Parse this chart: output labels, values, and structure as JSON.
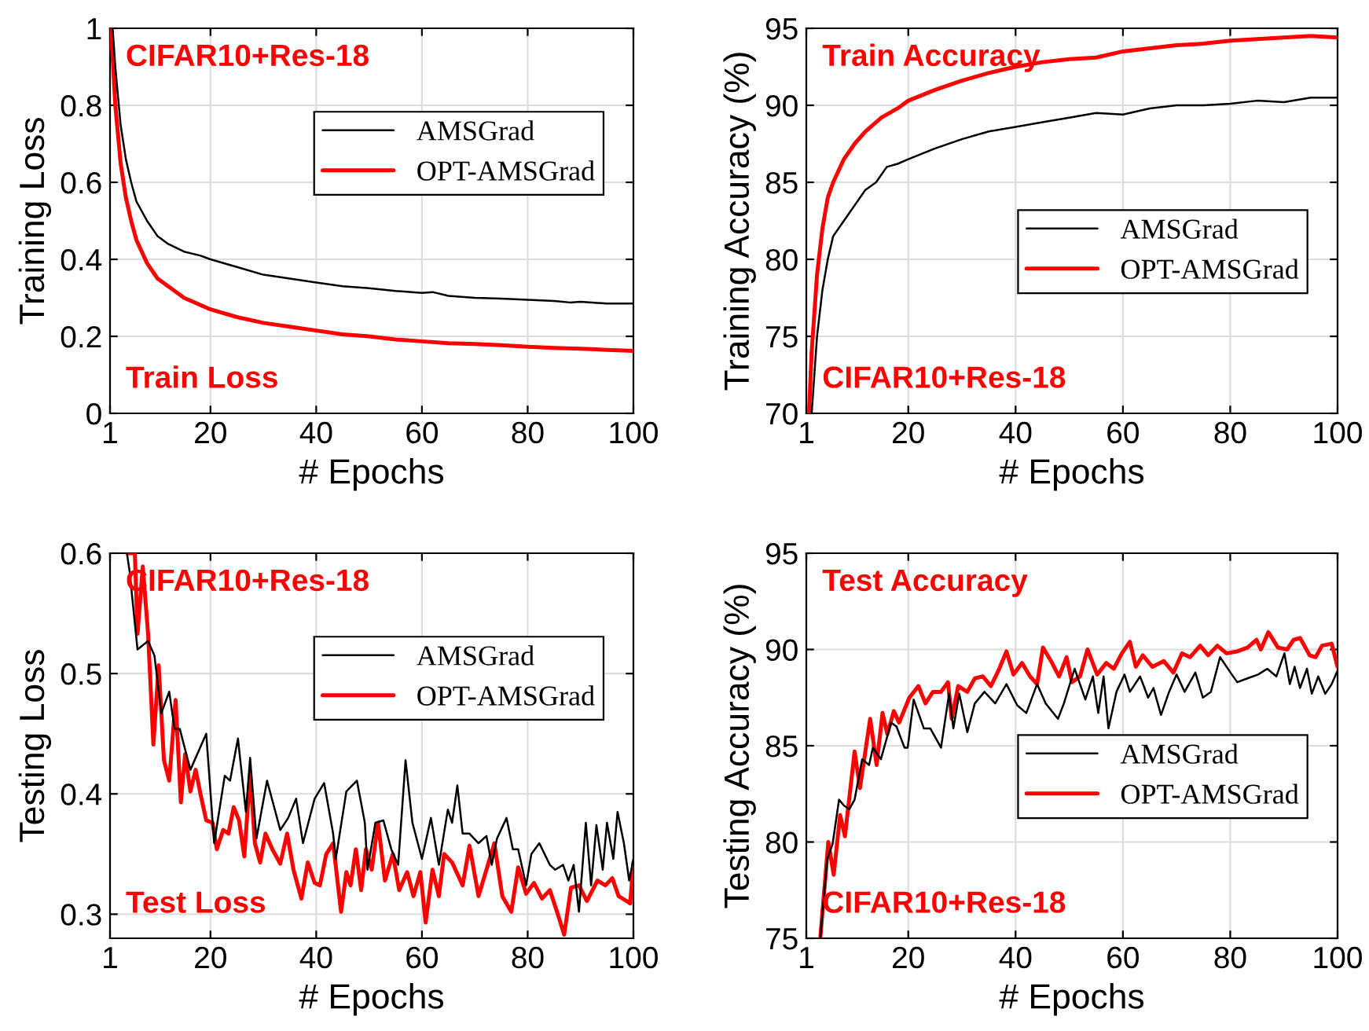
{
  "chart_data": [
    {
      "type": "line",
      "xlabel": "# Epochs",
      "ylabel": "Training Loss",
      "annotations": [
        "CIFAR10+Res-18",
        "Train Loss"
      ],
      "xlim": [
        1,
        100
      ],
      "xticks": [
        1,
        20,
        40,
        60,
        80,
        100
      ],
      "ylim": [
        0,
        1
      ],
      "yticks": [
        0,
        0.2,
        0.4,
        0.6,
        0.8,
        1
      ],
      "grid": true,
      "legend": "top right",
      "series": [
        {
          "name": "AMSGrad",
          "color": "#000000",
          "x": [
            1.5,
            2,
            3,
            4,
            5,
            6,
            8,
            10,
            12,
            15,
            18,
            20,
            25,
            30,
            35,
            40,
            45,
            50,
            55,
            60,
            62,
            65,
            70,
            75,
            80,
            85,
            88,
            90,
            95,
            100
          ],
          "values": [
            1.0,
            0.9,
            0.75,
            0.66,
            0.6,
            0.55,
            0.5,
            0.46,
            0.44,
            0.42,
            0.41,
            0.4,
            0.38,
            0.36,
            0.35,
            0.34,
            0.33,
            0.325,
            0.318,
            0.313,
            0.315,
            0.305,
            0.3,
            0.298,
            0.295,
            0.292,
            0.288,
            0.29,
            0.285,
            0.285
          ]
        },
        {
          "name": "OPT-AMSGrad",
          "color": "#ff0000",
          "x": [
            1.2,
            2,
            3,
            4,
            5,
            6,
            8,
            10,
            12,
            15,
            20,
            25,
            30,
            35,
            40,
            45,
            50,
            55,
            60,
            65,
            70,
            75,
            80,
            85,
            90,
            95,
            100
          ],
          "values": [
            1.0,
            0.8,
            0.65,
            0.56,
            0.5,
            0.45,
            0.39,
            0.35,
            0.33,
            0.3,
            0.27,
            0.25,
            0.235,
            0.225,
            0.215,
            0.205,
            0.2,
            0.192,
            0.187,
            0.182,
            0.18,
            0.177,
            0.173,
            0.17,
            0.168,
            0.165,
            0.162
          ]
        }
      ]
    },
    {
      "type": "line",
      "xlabel": "# Epochs",
      "ylabel": "Training Accuracy (%)",
      "annotations": [
        "Train Accuracy",
        "CIFAR10+Res-18"
      ],
      "xlim": [
        1,
        100
      ],
      "xticks": [
        1,
        20,
        40,
        60,
        80,
        100
      ],
      "ylim": [
        70,
        95
      ],
      "yticks": [
        70,
        75,
        80,
        85,
        90,
        95
      ],
      "grid": true,
      "legend": "right",
      "series": [
        {
          "name": "AMSGrad",
          "color": "#000000",
          "x": [
            2,
            3,
            4,
            5,
            6,
            8,
            10,
            12,
            14,
            16,
            18,
            20,
            25,
            30,
            35,
            40,
            45,
            50,
            55,
            60,
            65,
            70,
            75,
            80,
            85,
            90,
            95,
            100
          ],
          "values": [
            70,
            75,
            78,
            80,
            81.5,
            82.5,
            83.5,
            84.5,
            85,
            86,
            86.2,
            86.5,
            87.2,
            87.8,
            88.3,
            88.6,
            88.9,
            89.2,
            89.5,
            89.4,
            89.8,
            90,
            90,
            90.1,
            90.3,
            90.2,
            90.5,
            90.5
          ]
        },
        {
          "name": "OPT-AMSGrad",
          "color": "#ff0000",
          "x": [
            1.5,
            2,
            3,
            4,
            5,
            6,
            8,
            10,
            12,
            15,
            18,
            20,
            25,
            30,
            35,
            40,
            45,
            50,
            55,
            60,
            65,
            70,
            75,
            80,
            85,
            90,
            95,
            100
          ],
          "values": [
            70,
            74,
            79,
            82,
            84,
            85,
            86.5,
            87.5,
            88.3,
            89.2,
            89.8,
            90.3,
            91,
            91.6,
            92.1,
            92.5,
            92.8,
            93,
            93.1,
            93.5,
            93.7,
            93.9,
            94,
            94.2,
            94.3,
            94.4,
            94.5,
            94.4
          ]
        }
      ]
    },
    {
      "type": "line",
      "xlabel": "# Epochs",
      "ylabel": "Testing Loss",
      "annotations": [
        "CIFAR10+Res-18",
        "Test Loss"
      ],
      "xlim": [
        1,
        100
      ],
      "xticks": [
        1,
        20,
        40,
        60,
        80,
        100
      ],
      "ylim": [
        0.28,
        0.6
      ],
      "yticks": [
        0.3,
        0.4,
        0.5,
        0.6
      ],
      "grid": true,
      "legend": "top right",
      "series": [
        {
          "name": "AMSGrad",
          "color": "#000000",
          "x": [
            4.2,
            4.7,
            6.2,
            8.2,
            9.4,
            10.7,
            12.2,
            13.2,
            14.2,
            16.2,
            19.2,
            20.7,
            22.7,
            23.7,
            25.2,
            26.7,
            27.5,
            28.7,
            30.7,
            33.2,
            34.7,
            36.2,
            37.5,
            39.7,
            41.5,
            43.2,
            43.7,
            45.7,
            47.7,
            49.2,
            49.7,
            51.2,
            52.7,
            54.2,
            55.5,
            56.9,
            58.2,
            60,
            61.7,
            63.2,
            64.9,
            65.7,
            66.7,
            67.7,
            69,
            70.7,
            72.2,
            73.2,
            74.2,
            76,
            77.2,
            78.2,
            79.7,
            80.7,
            82.2,
            84.2,
            85.2,
            86.7,
            87.7,
            88.7,
            89.7,
            91,
            92,
            93,
            94.2,
            95,
            96.2,
            97,
            98.2,
            99.2,
            100
          ],
          "values": [
            0.6,
            0.585,
            0.52,
            0.527,
            0.515,
            0.467,
            0.485,
            0.454,
            0.454,
            0.42,
            0.45,
            0.359,
            0.415,
            0.411,
            0.446,
            0.385,
            0.43,
            0.363,
            0.411,
            0.37,
            0.38,
            0.396,
            0.359,
            0.396,
            0.409,
            0.367,
            0.346,
            0.402,
            0.411,
            0.376,
            0.337,
            0.376,
            0.378,
            0.354,
            0.341,
            0.428,
            0.376,
            0.346,
            0.38,
            0.341,
            0.387,
            0.376,
            0.407,
            0.367,
            0.367,
            0.359,
            0.365,
            0.341,
            0.363,
            0.38,
            0.354,
            0.354,
            0.324,
            0.35,
            0.359,
            0.341,
            0.337,
            0.341,
            0.328,
            0.341,
            0.302,
            0.376,
            0.324,
            0.374,
            0.337,
            0.376,
            0.346,
            0.385,
            0.359,
            0.328,
            0.346
          ]
        },
        {
          "name": "OPT-AMSGrad",
          "color": "#ff0000",
          "x": [
            4.2,
            5.7,
            6.2,
            7.2,
            8.2,
            9.2,
            10.2,
            11.2,
            12.2,
            13.4,
            14.4,
            15.2,
            16.2,
            17.2,
            18.2,
            19.2,
            20.4,
            21.2,
            22.4,
            23.4,
            24.4,
            25.4,
            26.4,
            27.5,
            28.4,
            29.4,
            30.4,
            31.7,
            33.2,
            34.5,
            35.7,
            37.2,
            38.4,
            39.7,
            40.7,
            41.9,
            43.2,
            44.7,
            45.7,
            46.5,
            47.5,
            48.5,
            49.4,
            50.5,
            51.7,
            53,
            54.5,
            55.7,
            57.2,
            58.4,
            59.7,
            60.7,
            62,
            63.2,
            64.2,
            65.7,
            67.7,
            69,
            70.7,
            72.2,
            73.7,
            75.2,
            76.9,
            78.2,
            79.7,
            81.2,
            82.7,
            84.2,
            85.7,
            86.9,
            88.2,
            89.7,
            91.2,
            93.2,
            94.7,
            96,
            97.2,
            98.7,
            99.4,
            100
          ],
          "values": [
            0.6,
            0.6,
            0.533,
            0.589,
            0.533,
            0.441,
            0.507,
            0.428,
            0.411,
            0.478,
            0.393,
            0.433,
            0.402,
            0.42,
            0.398,
            0.378,
            0.376,
            0.354,
            0.37,
            0.367,
            0.389,
            0.378,
            0.348,
            0.417,
            0.359,
            0.343,
            0.367,
            0.354,
            0.342,
            0.367,
            0.337,
            0.313,
            0.343,
            0.326,
            0.324,
            0.35,
            0.359,
            0.302,
            0.335,
            0.324,
            0.354,
            0.32,
            0.354,
            0.337,
            0.376,
            0.328,
            0.35,
            0.32,
            0.335,
            0.315,
            0.335,
            0.293,
            0.337,
            0.315,
            0.35,
            0.343,
            0.324,
            0.357,
            0.315,
            0.337,
            0.359,
            0.315,
            0.302,
            0.339,
            0.317,
            0.326,
            0.313,
            0.32,
            0.3,
            0.283,
            0.322,
            0.324,
            0.311,
            0.328,
            0.324,
            0.33,
            0.315,
            0.311,
            0.309,
            0.343
          ]
        }
      ]
    },
    {
      "type": "line",
      "xlabel": "# Epochs",
      "ylabel": "Testing Accuracy (%)",
      "annotations": [
        "Test Accuracy",
        "CIFAR10+Res-18"
      ],
      "xlim": [
        1,
        100
      ],
      "xticks": [
        1,
        20,
        40,
        60,
        80,
        100
      ],
      "ylim": [
        75,
        95
      ],
      "yticks": [
        75,
        80,
        85,
        90,
        95
      ],
      "grid": true,
      "legend": "right",
      "series": [
        {
          "name": "AMSGrad",
          "color": "#000000",
          "x": [
            3.6,
            4.9,
            5.9,
            7.1,
            8,
            9,
            10,
            11.4,
            12.7,
            13.4,
            14.9,
            16.8,
            17.8,
            19.3,
            19.9,
            21,
            22.9,
            24.1,
            26.1,
            27.6,
            28.4,
            29.5,
            31,
            32.4,
            34.2,
            36.2,
            38.3,
            40.3,
            42,
            44,
            45.6,
            47.9,
            49,
            51,
            53,
            54.4,
            55.4,
            56.4,
            57.3,
            58.8,
            60.3,
            61.3,
            63.2,
            64.7,
            65.7,
            67.1,
            68.6,
            70,
            71.5,
            73.5,
            74.9,
            76.4,
            78.1,
            80.3,
            81.3,
            83.2,
            85.2,
            86.9,
            88.6,
            90.1,
            91.1,
            92,
            93,
            94.3,
            95.2,
            96.4,
            97.7,
            98.9,
            100
          ],
          "values": [
            75,
            79.1,
            79.9,
            82.2,
            81.9,
            81.7,
            82.2,
            84.3,
            84,
            84.9,
            84.3,
            86.2,
            86,
            84.9,
            84.9,
            87.4,
            85.9,
            85.9,
            84.9,
            87.7,
            85.9,
            87.7,
            85.7,
            87.2,
            87.8,
            87.2,
            88.2,
            87.1,
            86.7,
            88.2,
            87.2,
            86.4,
            87.2,
            89,
            87.4,
            88.6,
            86.7,
            88.6,
            85.9,
            87.8,
            88.7,
            87.8,
            88.6,
            87.5,
            88,
            86.6,
            87.8,
            88.7,
            87.8,
            88.8,
            87.5,
            87.8,
            89.6,
            88.7,
            88.3,
            88.5,
            88.7,
            89,
            88.6,
            89.8,
            88.2,
            89.1,
            88,
            89,
            87.7,
            88.6,
            87.7,
            88.2,
            88.9
          ]
        },
        {
          "name": "OPT-AMSGrad",
          "color": "#ff0000",
          "x": [
            3.6,
            5.1,
            6.1,
            7.3,
            8.2,
            10,
            11,
            12.9,
            14.1,
            15.2,
            16.1,
            17.3,
            18.3,
            20.2,
            21.9,
            23.2,
            24.6,
            26.1,
            27.4,
            28.1,
            29.3,
            31,
            32.4,
            33.9,
            35.4,
            36.8,
            38.3,
            39.6,
            41.2,
            42.7,
            44,
            45.1,
            46.6,
            48.1,
            49.5,
            50.5,
            52,
            53.4,
            55.2,
            56.9,
            58.3,
            59.8,
            61.3,
            62.4,
            63.7,
            65.5,
            67.6,
            69.4,
            71,
            72.5,
            74.4,
            75.9,
            77.6,
            79.3,
            81.3,
            83.2,
            84.9,
            85.7,
            87.1,
            88.9,
            90.6,
            91.8,
            93,
            94.8,
            95.9,
            97.1,
            98.9,
            100
          ],
          "values": [
            75,
            80,
            78.3,
            81.4,
            80.3,
            84.7,
            82.8,
            86.4,
            84,
            86.7,
            85.6,
            86.8,
            86.2,
            87.5,
            88.1,
            87.2,
            87.8,
            87.8,
            88.3,
            86.4,
            88.1,
            87.8,
            88.5,
            88.6,
            88.1,
            88.9,
            89.9,
            88.7,
            89.3,
            88.6,
            88.2,
            90.1,
            89.4,
            88.6,
            89.6,
            88.3,
            88.6,
            90,
            88.7,
            89.3,
            89,
            89.8,
            90.4,
            89.1,
            89.7,
            89.1,
            89.4,
            88.8,
            89.8,
            89.6,
            90.2,
            89.7,
            90.2,
            89.8,
            89.9,
            90.1,
            90.5,
            90,
            90.9,
            90.1,
            90,
            90.5,
            90.6,
            89.7,
            89.6,
            90.2,
            90.3,
            89.1
          ]
        }
      ]
    }
  ]
}
